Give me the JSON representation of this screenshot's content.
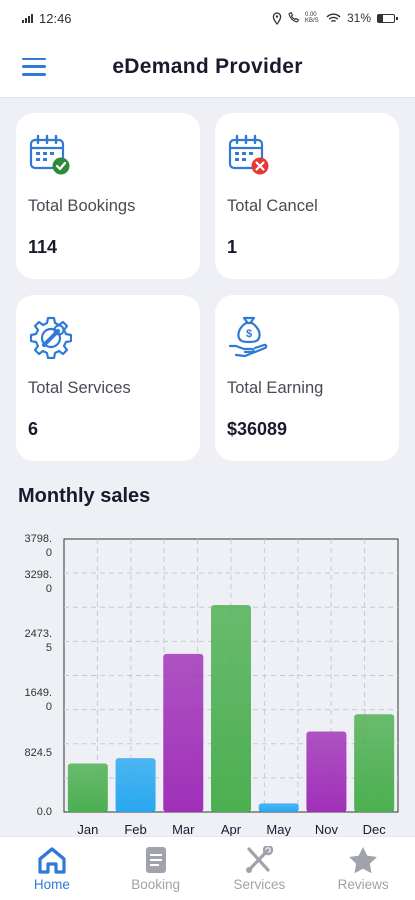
{
  "status_bar": {
    "time": "12:46",
    "network": "0.00 KB/S",
    "battery": "31%",
    "battery_level": 0.31
  },
  "app_bar": {
    "title": "eDemand Provider"
  },
  "stats": [
    {
      "label": "Total Bookings",
      "value": "114",
      "icon": "calendar-check-icon"
    },
    {
      "label": "Total Cancel",
      "value": "1",
      "icon": "calendar-cancel-icon"
    },
    {
      "label": "Total Services",
      "value": "6",
      "icon": "gear-wrench-icon"
    },
    {
      "label": "Total Earning",
      "value": "$36089",
      "icon": "money-bag-hand-icon"
    }
  ],
  "monthly_sales": {
    "title": "Monthly sales",
    "chart_data": {
      "type": "bar",
      "categories": [
        "Jan",
        "Feb",
        "Mar",
        "Apr",
        "May",
        "Nov",
        "Dec"
      ],
      "values": [
        675,
        750,
        2200,
        2880,
        120,
        1120,
        1360
      ],
      "colors": [
        "#4caf50",
        "#29a8f0",
        "#a030b8",
        "#4caf50",
        "#29a8f0",
        "#a030b8",
        "#4caf50"
      ],
      "ylim": [
        0,
        3798.0
      ],
      "ytick_labels": [
        "0.0",
        "824.5",
        "1649.\n0",
        "2473.\n5",
        "3298.\n0",
        "3798.\n0"
      ],
      "grid": true
    }
  },
  "bottom_nav": {
    "items": [
      {
        "label": "Home",
        "icon": "home-icon",
        "active": true
      },
      {
        "label": "Booking",
        "icon": "booking-doc-icon",
        "active": false
      },
      {
        "label": "Services",
        "icon": "tools-icon",
        "active": false
      },
      {
        "label": "Reviews",
        "icon": "star-icon",
        "active": false
      }
    ]
  },
  "colors": {
    "accent": "#2e7ad6",
    "nav_inactive": "#a0a3ab",
    "cancel": "#e53935",
    "check": "#2e8b3a"
  }
}
